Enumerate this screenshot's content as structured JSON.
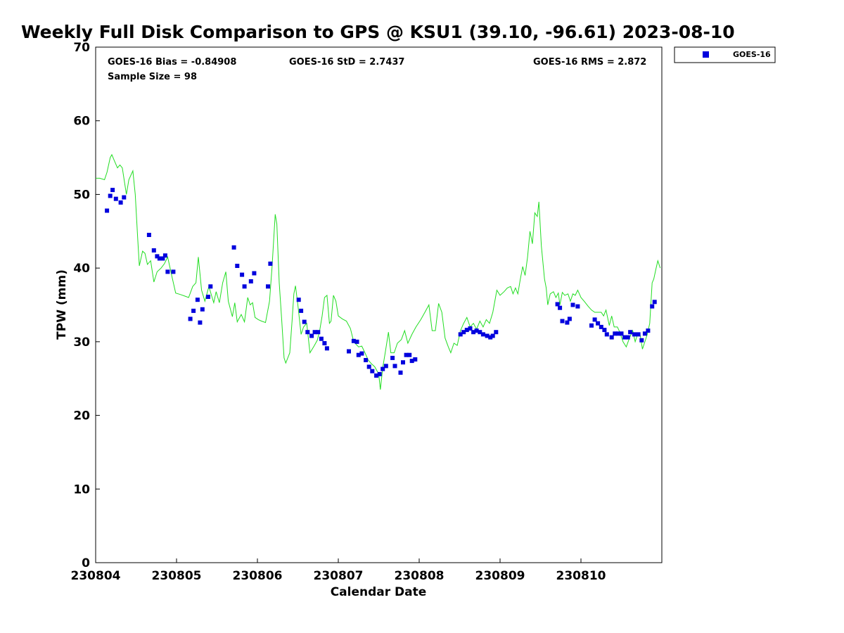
{
  "chart_data": {
    "type": "scatter",
    "title": "Weekly Full Disk Comparison to GPS @ KSU1 (39.10, -96.61) 2023-08-10",
    "xlabel": "Calendar Date",
    "ylabel": "TPW (mm)",
    "xlim": [
      230804,
      230811
    ],
    "ylim": [
      0,
      70
    ],
    "x_ticks": [
      "230804",
      "230805",
      "230806",
      "230807",
      "230808",
      "230809",
      "230810"
    ],
    "y_ticks": [
      "0",
      "10",
      "20",
      "30",
      "40",
      "50",
      "60",
      "70"
    ],
    "grid": false,
    "legend_position": "outside-top-right",
    "stats": {
      "bias": "GOES-16 Bias = -0.84908",
      "std": "GOES-16 StD = 2.7437",
      "rms": "GOES-16 RMS = 2.872",
      "sample": "Sample Size = 98"
    },
    "colors": {
      "goes": "#0000dd",
      "gps": "#22dd22",
      "axis": "#000000"
    },
    "series": [
      {
        "name": "GOES-16",
        "marker": "square",
        "points": [
          [
            230804.14,
            47.8
          ],
          [
            230804.18,
            49.8
          ],
          [
            230804.21,
            50.6
          ],
          [
            230804.25,
            49.4
          ],
          [
            230804.31,
            48.9
          ],
          [
            230804.35,
            49.6
          ],
          [
            230804.66,
            44.5
          ],
          [
            230804.72,
            42.4
          ],
          [
            230804.76,
            41.6
          ],
          [
            230804.79,
            41.3
          ],
          [
            230804.83,
            41.3
          ],
          [
            230804.86,
            41.7
          ],
          [
            230804.89,
            39.5
          ],
          [
            230804.96,
            39.5
          ],
          [
            230805.17,
            33.1
          ],
          [
            230805.21,
            34.2
          ],
          [
            230805.26,
            35.7
          ],
          [
            230805.29,
            32.6
          ],
          [
            230805.32,
            34.4
          ],
          [
            230805.39,
            36.1
          ],
          [
            230805.42,
            37.5
          ],
          [
            230805.71,
            42.8
          ],
          [
            230805.75,
            40.3
          ],
          [
            230805.81,
            39.1
          ],
          [
            230805.84,
            37.5
          ],
          [
            230805.92,
            38.2
          ],
          [
            230805.96,
            39.3
          ],
          [
            230806.13,
            37.5
          ],
          [
            230806.16,
            40.6
          ],
          [
            230806.51,
            35.7
          ],
          [
            230806.54,
            34.2
          ],
          [
            230806.58,
            32.7
          ],
          [
            230806.62,
            31.3
          ],
          [
            230806.67,
            30.8
          ],
          [
            230806.71,
            31.3
          ],
          [
            230806.75,
            31.3
          ],
          [
            230806.79,
            30.4
          ],
          [
            230806.83,
            29.8
          ],
          [
            230806.86,
            29.1
          ],
          [
            230807.13,
            28.7
          ],
          [
            230807.19,
            30.1
          ],
          [
            230807.23,
            30.0
          ],
          [
            230807.25,
            28.2
          ],
          [
            230807.29,
            28.4
          ],
          [
            230807.34,
            27.5
          ],
          [
            230807.38,
            26.6
          ],
          [
            230807.42,
            26.0
          ],
          [
            230807.47,
            25.4
          ],
          [
            230807.51,
            25.6
          ],
          [
            230807.55,
            26.3
          ],
          [
            230807.59,
            26.7
          ],
          [
            230807.67,
            27.8
          ],
          [
            230807.7,
            26.7
          ],
          [
            230807.77,
            25.8
          ],
          [
            230807.8,
            27.2
          ],
          [
            230807.84,
            28.2
          ],
          [
            230807.88,
            28.2
          ],
          [
            230807.91,
            27.4
          ],
          [
            230807.95,
            27.6
          ],
          [
            230808.51,
            31.0
          ],
          [
            230808.55,
            31.3
          ],
          [
            230808.59,
            31.6
          ],
          [
            230808.63,
            31.8
          ],
          [
            230808.67,
            31.3
          ],
          [
            230808.71,
            31.5
          ],
          [
            230808.75,
            31.3
          ],
          [
            230808.79,
            31.0
          ],
          [
            230808.84,
            30.8
          ],
          [
            230808.88,
            30.6
          ],
          [
            230808.91,
            30.8
          ],
          [
            230808.95,
            31.3
          ],
          [
            230809.71,
            35.1
          ],
          [
            230809.74,
            34.6
          ],
          [
            230809.77,
            32.8
          ],
          [
            230809.83,
            32.6
          ],
          [
            230809.86,
            33.1
          ],
          [
            230809.9,
            35.0
          ],
          [
            230809.96,
            34.8
          ],
          [
            230810.13,
            32.2
          ],
          [
            230810.17,
            33.0
          ],
          [
            230810.21,
            32.5
          ],
          [
            230810.25,
            32.0
          ],
          [
            230810.29,
            31.6
          ],
          [
            230810.32,
            31.0
          ],
          [
            230810.38,
            30.6
          ],
          [
            230810.42,
            31.1
          ],
          [
            230810.46,
            31.1
          ],
          [
            230810.5,
            31.1
          ],
          [
            230810.54,
            30.6
          ],
          [
            230810.58,
            30.6
          ],
          [
            230810.61,
            31.3
          ],
          [
            230810.66,
            31.0
          ],
          [
            230810.71,
            31.0
          ],
          [
            230810.75,
            30.2
          ],
          [
            230810.79,
            31.1
          ],
          [
            230810.83,
            31.5
          ],
          [
            230810.88,
            34.8
          ],
          [
            230810.91,
            35.4
          ]
        ]
      },
      {
        "name": "",
        "line": true,
        "points": [
          [
            230804.0,
            52.2
          ],
          [
            230804.05,
            52.2
          ],
          [
            230804.11,
            52.0
          ],
          [
            230804.14,
            53.0
          ],
          [
            230804.18,
            55.0
          ],
          [
            230804.2,
            55.4
          ],
          [
            230804.23,
            54.6
          ],
          [
            230804.27,
            53.6
          ],
          [
            230804.3,
            54.0
          ],
          [
            230804.33,
            53.6
          ],
          [
            230804.38,
            50.0
          ],
          [
            230804.41,
            52.0
          ],
          [
            230804.46,
            53.2
          ],
          [
            230804.49,
            50.0
          ],
          [
            230804.52,
            44.0
          ],
          [
            230804.54,
            40.3
          ],
          [
            230804.58,
            42.3
          ],
          [
            230804.61,
            42.0
          ],
          [
            230804.64,
            40.5
          ],
          [
            230804.68,
            41.0
          ],
          [
            230804.72,
            38.1
          ],
          [
            230804.76,
            39.5
          ],
          [
            230804.81,
            40.0
          ],
          [
            230804.85,
            40.6
          ],
          [
            230804.89,
            41.5
          ],
          [
            230804.94,
            39.0
          ],
          [
            230804.99,
            36.6
          ],
          [
            230805.05,
            36.4
          ],
          [
            230805.1,
            36.2
          ],
          [
            230805.15,
            36.0
          ],
          [
            230805.2,
            37.5
          ],
          [
            230805.24,
            38.0
          ],
          [
            230805.27,
            41.5
          ],
          [
            230805.31,
            37.0
          ],
          [
            230805.35,
            35.5
          ],
          [
            230805.4,
            37.5
          ],
          [
            230805.44,
            36.0
          ],
          [
            230805.46,
            35.3
          ],
          [
            230805.49,
            36.8
          ],
          [
            230805.53,
            35.3
          ],
          [
            230805.57,
            38.0
          ],
          [
            230805.61,
            39.5
          ],
          [
            230805.64,
            35.5
          ],
          [
            230805.69,
            33.4
          ],
          [
            230805.72,
            35.3
          ],
          [
            230805.75,
            32.7
          ],
          [
            230805.8,
            33.7
          ],
          [
            230805.84,
            32.7
          ],
          [
            230805.88,
            36.0
          ],
          [
            230805.91,
            35.0
          ],
          [
            230805.94,
            35.3
          ],
          [
            230805.97,
            33.3
          ],
          [
            230806.01,
            33.0
          ],
          [
            230806.05,
            32.8
          ],
          [
            230806.1,
            32.6
          ],
          [
            230806.15,
            35.5
          ],
          [
            230806.18,
            40.0
          ],
          [
            230806.22,
            47.3
          ],
          [
            230806.24,
            46.0
          ],
          [
            230806.27,
            38.0
          ],
          [
            230806.3,
            33.0
          ],
          [
            230806.33,
            27.8
          ],
          [
            230806.35,
            27.1
          ],
          [
            230806.4,
            28.5
          ],
          [
            230806.43,
            33.0
          ],
          [
            230806.45,
            36.5
          ],
          [
            230806.47,
            37.6
          ],
          [
            230806.5,
            35.0
          ],
          [
            230806.54,
            31.0
          ],
          [
            230806.57,
            32.0
          ],
          [
            230806.61,
            32.5
          ],
          [
            230806.65,
            28.5
          ],
          [
            230806.7,
            29.4
          ],
          [
            230806.74,
            30.2
          ],
          [
            230806.77,
            31.5
          ],
          [
            230806.8,
            33.5
          ],
          [
            230806.83,
            36.0
          ],
          [
            230806.86,
            36.3
          ],
          [
            230806.89,
            32.5
          ],
          [
            230806.91,
            32.8
          ],
          [
            230806.94,
            36.3
          ],
          [
            230806.97,
            35.5
          ],
          [
            230807.0,
            33.5
          ],
          [
            230807.05,
            33.1
          ],
          [
            230807.1,
            32.8
          ],
          [
            230807.15,
            31.8
          ],
          [
            230807.19,
            30.0
          ],
          [
            230807.25,
            29.3
          ],
          [
            230807.29,
            29.4
          ],
          [
            230807.33,
            28.5
          ],
          [
            230807.37,
            27.5
          ],
          [
            230807.41,
            27.0
          ],
          [
            230807.45,
            26.6
          ],
          [
            230807.5,
            25.6
          ],
          [
            230807.52,
            23.5
          ],
          [
            230807.55,
            26.5
          ],
          [
            230807.58,
            28.5
          ],
          [
            230807.62,
            31.3
          ],
          [
            230807.65,
            28.5
          ],
          [
            230807.69,
            28.5
          ],
          [
            230807.73,
            29.8
          ],
          [
            230807.78,
            30.3
          ],
          [
            230807.82,
            31.5
          ],
          [
            230807.86,
            29.8
          ],
          [
            230807.91,
            31.0
          ],
          [
            230807.96,
            32.0
          ],
          [
            230808.02,
            33.0
          ],
          [
            230808.07,
            34.0
          ],
          [
            230808.12,
            35.0
          ],
          [
            230808.16,
            31.5
          ],
          [
            230808.2,
            31.5
          ],
          [
            230808.24,
            35.2
          ],
          [
            230808.28,
            34.0
          ],
          [
            230808.32,
            30.5
          ],
          [
            230808.36,
            29.3
          ],
          [
            230808.39,
            28.5
          ],
          [
            230808.43,
            29.8
          ],
          [
            230808.47,
            29.5
          ],
          [
            230808.51,
            31.5
          ],
          [
            230808.55,
            32.5
          ],
          [
            230808.59,
            33.3
          ],
          [
            230808.63,
            32.0
          ],
          [
            230808.67,
            32.5
          ],
          [
            230808.71,
            31.7
          ],
          [
            230808.75,
            32.8
          ],
          [
            230808.79,
            32.0
          ],
          [
            230808.83,
            33.0
          ],
          [
            230808.87,
            32.5
          ],
          [
            230808.91,
            34.0
          ],
          [
            230808.96,
            37.0
          ],
          [
            230809.0,
            36.3
          ],
          [
            230809.05,
            36.8
          ],
          [
            230809.09,
            37.3
          ],
          [
            230809.13,
            37.5
          ],
          [
            230809.16,
            36.5
          ],
          [
            230809.19,
            37.3
          ],
          [
            230809.22,
            36.5
          ],
          [
            230809.25,
            38.5
          ],
          [
            230809.28,
            40.2
          ],
          [
            230809.31,
            39.0
          ],
          [
            230809.34,
            41.5
          ],
          [
            230809.37,
            45.0
          ],
          [
            230809.4,
            43.3
          ],
          [
            230809.43,
            47.5
          ],
          [
            230809.46,
            47.0
          ],
          [
            230809.48,
            49.0
          ],
          [
            230809.51,
            43.0
          ],
          [
            230809.55,
            38.5
          ],
          [
            230809.57,
            37.3
          ],
          [
            230809.59,
            35.0
          ],
          [
            230809.62,
            36.5
          ],
          [
            230809.66,
            36.8
          ],
          [
            230809.69,
            36.0
          ],
          [
            230809.72,
            36.6
          ],
          [
            230809.74,
            35.0
          ],
          [
            230809.77,
            36.7
          ],
          [
            230809.8,
            36.3
          ],
          [
            230809.84,
            36.5
          ],
          [
            230809.87,
            35.5
          ],
          [
            230809.9,
            36.5
          ],
          [
            230809.93,
            36.3
          ],
          [
            230809.96,
            37.0
          ],
          [
            230810.0,
            36.0
          ],
          [
            230810.04,
            35.5
          ],
          [
            230810.09,
            34.8
          ],
          [
            230810.13,
            34.3
          ],
          [
            230810.17,
            34.0
          ],
          [
            230810.21,
            34.0
          ],
          [
            230810.25,
            34.0
          ],
          [
            230810.28,
            33.5
          ],
          [
            230810.31,
            34.3
          ],
          [
            230810.35,
            32.2
          ],
          [
            230810.38,
            33.5
          ],
          [
            230810.41,
            32.0
          ],
          [
            230810.45,
            32.0
          ],
          [
            230810.48,
            31.3
          ],
          [
            230810.52,
            30.0
          ],
          [
            230810.56,
            29.3
          ],
          [
            230810.6,
            30.5
          ],
          [
            230810.64,
            31.5
          ],
          [
            230810.67,
            30.0
          ],
          [
            230810.7,
            31.0
          ],
          [
            230810.73,
            31.0
          ],
          [
            230810.76,
            29.0
          ],
          [
            230810.79,
            30.0
          ],
          [
            230810.82,
            31.0
          ],
          [
            230810.85,
            32.5
          ],
          [
            230810.88,
            38.0
          ],
          [
            230810.9,
            38.5
          ],
          [
            230810.93,
            40.0
          ],
          [
            230810.95,
            41.0
          ],
          [
            230810.98,
            40.0
          ]
        ]
      }
    ]
  }
}
